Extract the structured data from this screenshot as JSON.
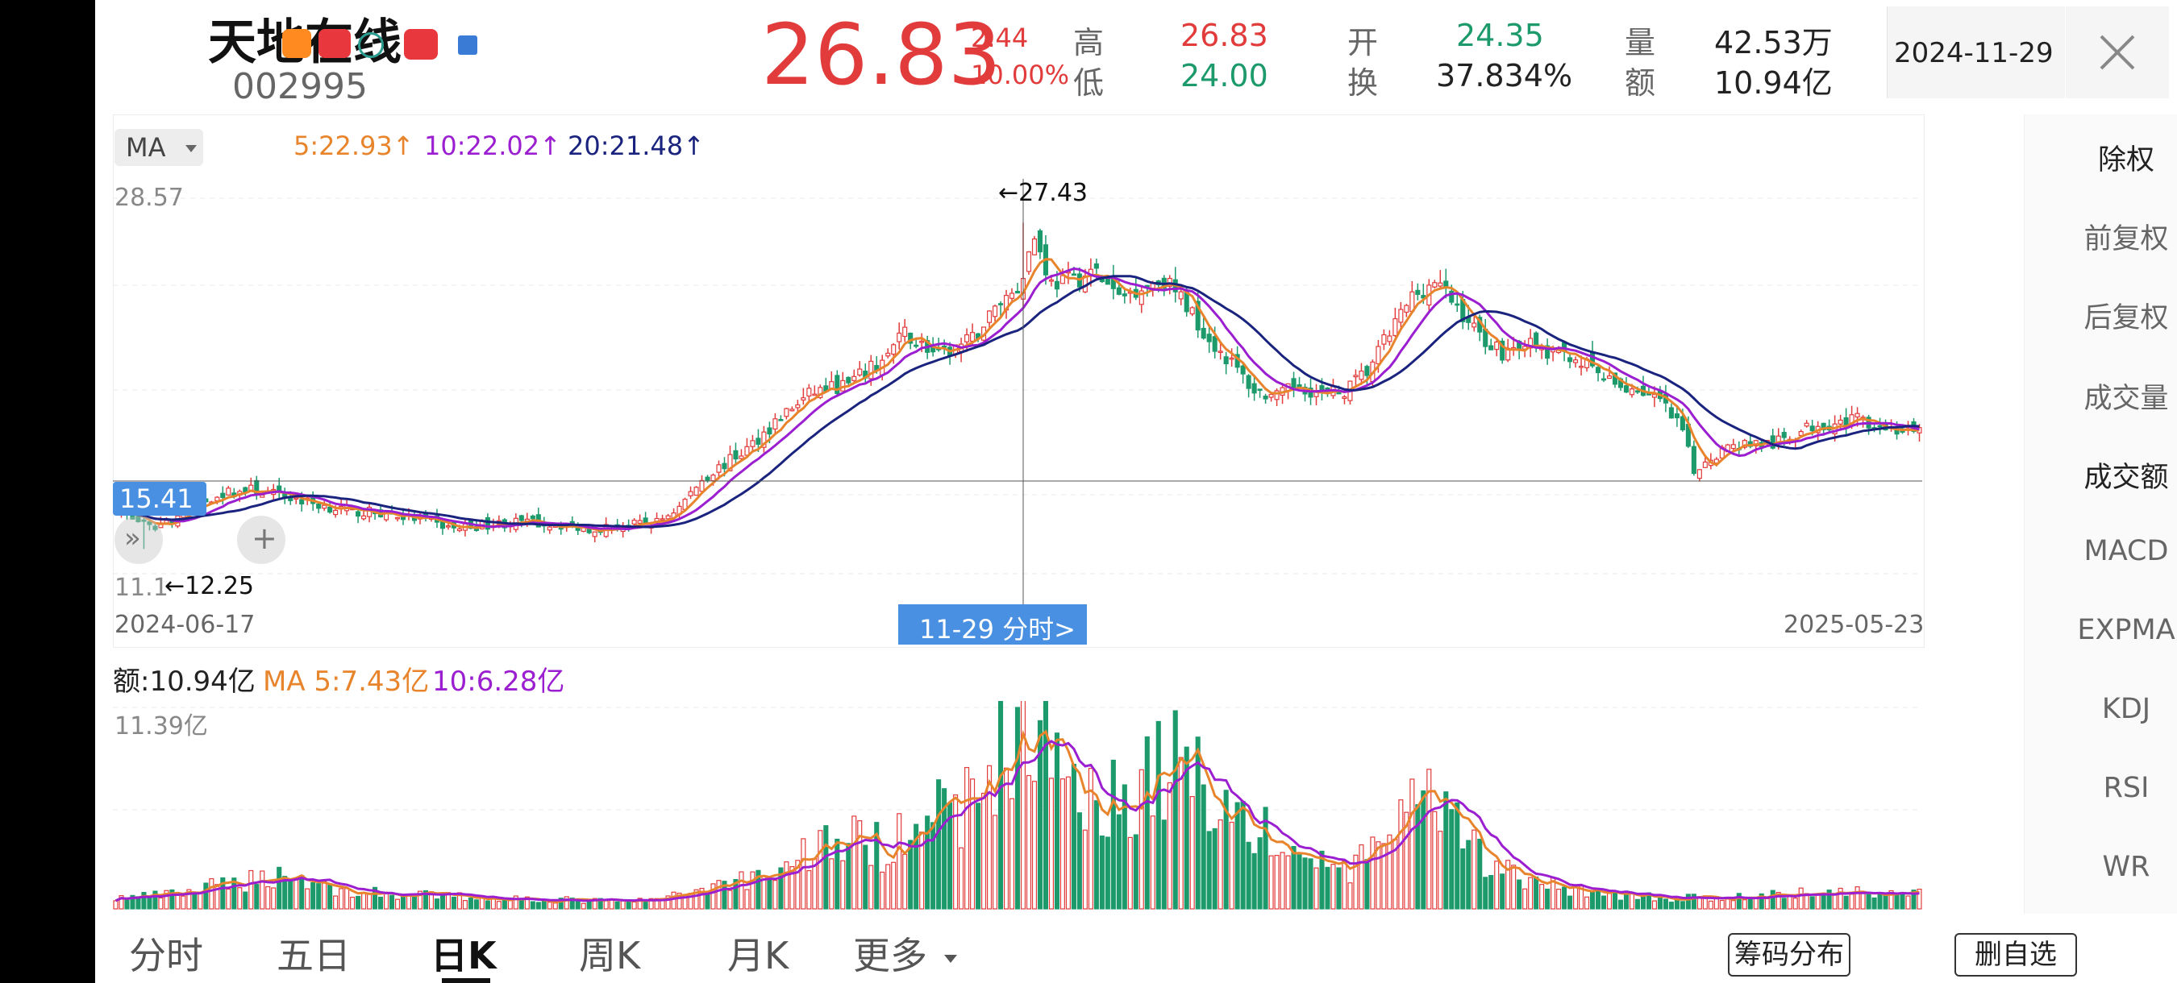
{
  "header": {
    "stock_name": "天地在线",
    "stock_code": "002995",
    "price": "26.83",
    "change": "2.44",
    "change_pct": "10.00%",
    "stats": {
      "high_label": "高",
      "high": "26.83",
      "low_label": "低",
      "low": "24.00",
      "open_label": "开",
      "open": "24.35",
      "turnover_label": "换",
      "turnover": "37.834%",
      "volume_label": "量",
      "volume": "42.53万",
      "amount_label": "额",
      "amount": "10.94亿"
    },
    "date": "2024-11-29",
    "close_icon": "close-icon"
  },
  "colors": {
    "up": "#e23b3b",
    "down": "#1d9a6c",
    "ma5": "#e8842c",
    "ma10": "#9b1fd0",
    "ma20": "#1a237e",
    "accent": "#4a90e2"
  },
  "main_chart": {
    "ma_button": "MA",
    "ma5": "5:22.93↑",
    "ma10": "10:22.02↑",
    "ma20": "20:21.48↑",
    "price_max_label": "28.57",
    "price_min_label": "11.1",
    "crosshair_value": "15.41",
    "high_marker": "←27.43",
    "low_marker": "←12.25",
    "date_start": "2024-06-17",
    "date_end": "2025-05-23",
    "tooltip": "11-29 分时>"
  },
  "volume_chart": {
    "amount": "额:10.94亿",
    "ma5": "MA 5:7.43亿",
    "ma10": "10:6.28亿",
    "max_label": "11.39亿"
  },
  "side_menu": [
    "除权",
    "前复权",
    "后复权",
    "成交量",
    "成交额",
    "MACD",
    "EXPMA",
    "KDJ",
    "RSI",
    "WR"
  ],
  "bottom_tabs": [
    "分时",
    "五日",
    "日K",
    "周K",
    "月K",
    "更多"
  ],
  "active_tab": "日K",
  "buttons": {
    "chip": "筹码分布",
    "remove_watch": "删自选"
  },
  "chart_data": {
    "type": "candlestick",
    "x_range": [
      "2024-06-17",
      "2025-05-23"
    ],
    "y_range": [
      11.1,
      28.57
    ],
    "annotations": {
      "high": 27.43,
      "low": 12.25,
      "crosshair": 15.41,
      "selected_date": "2024-11-29"
    },
    "close_anchors": [
      [
        0,
        14.2
      ],
      [
        6,
        13.2
      ],
      [
        12,
        13.9
      ],
      [
        18,
        14.8
      ],
      [
        24,
        15.0
      ],
      [
        30,
        14.7
      ],
      [
        36,
        14.3
      ],
      [
        42,
        14.0
      ],
      [
        48,
        13.9
      ],
      [
        54,
        13.6
      ],
      [
        60,
        13.2
      ],
      [
        66,
        13.4
      ],
      [
        72,
        13.5
      ],
      [
        78,
        13.4
      ],
      [
        84,
        13.2
      ],
      [
        90,
        13.3
      ],
      [
        96,
        13.5
      ],
      [
        100,
        14.2
      ],
      [
        104,
        15.5
      ],
      [
        108,
        16.2
      ],
      [
        112,
        16.9
      ],
      [
        118,
        18.4
      ],
      [
        124,
        19.6
      ],
      [
        130,
        19.9
      ],
      [
        136,
        21.0
      ],
      [
        140,
        22.3
      ],
      [
        146,
        21.2
      ],
      [
        152,
        22.0
      ],
      [
        157,
        23.8
      ],
      [
        160,
        24.4
      ],
      [
        163,
        26.8
      ],
      [
        166,
        24.6
      ],
      [
        170,
        24.8
      ],
      [
        174,
        25.1
      ],
      [
        178,
        23.9
      ],
      [
        182,
        24.5
      ],
      [
        186,
        24.8
      ],
      [
        190,
        23.6
      ],
      [
        194,
        22.0
      ],
      [
        198,
        20.9
      ],
      [
        202,
        19.6
      ],
      [
        206,
        19.3
      ],
      [
        210,
        19.9
      ],
      [
        214,
        19.4
      ],
      [
        218,
        19.6
      ],
      [
        222,
        20.5
      ],
      [
        226,
        22.3
      ],
      [
        230,
        24.0
      ],
      [
        234,
        24.7
      ],
      [
        238,
        23.5
      ],
      [
        242,
        22.2
      ],
      [
        246,
        21.4
      ],
      [
        250,
        21.9
      ],
      [
        254,
        21.3
      ],
      [
        258,
        21.3
      ],
      [
        262,
        20.6
      ],
      [
        266,
        19.8
      ],
      [
        270,
        19.7
      ],
      [
        274,
        19.1
      ],
      [
        278,
        17.7
      ],
      [
        280,
        15.8
      ],
      [
        282,
        16.4
      ],
      [
        286,
        17.0
      ],
      [
        290,
        17.2
      ],
      [
        294,
        17.1
      ],
      [
        298,
        17.6
      ],
      [
        302,
        18.1
      ],
      [
        306,
        18.1
      ],
      [
        310,
        18.3
      ],
      [
        314,
        17.9
      ],
      [
        318,
        17.7
      ],
      [
        320,
        17.6
      ]
    ],
    "volume_anchors_yi": [
      [
        0,
        0.6
      ],
      [
        10,
        0.8
      ],
      [
        20,
        1.4
      ],
      [
        30,
        2.0
      ],
      [
        40,
        1.0
      ],
      [
        50,
        0.8
      ],
      [
        60,
        0.7
      ],
      [
        70,
        0.6
      ],
      [
        80,
        0.5
      ],
      [
        90,
        0.4
      ],
      [
        98,
        0.6
      ],
      [
        104,
        1.2
      ],
      [
        110,
        1.6
      ],
      [
        118,
        2.2
      ],
      [
        124,
        3.6
      ],
      [
        130,
        4.0
      ],
      [
        136,
        3.4
      ],
      [
        142,
        6.0
      ],
      [
        148,
        5.0
      ],
      [
        154,
        7.0
      ],
      [
        160,
        10.94
      ],
      [
        166,
        9.0
      ],
      [
        172,
        7.2
      ],
      [
        178,
        6.0
      ],
      [
        184,
        7.8
      ],
      [
        190,
        8.4
      ],
      [
        196,
        6.2
      ],
      [
        202,
        4.6
      ],
      [
        208,
        3.2
      ],
      [
        214,
        2.6
      ],
      [
        220,
        2.2
      ],
      [
        228,
        5.4
      ],
      [
        234,
        5.8
      ],
      [
        240,
        3.6
      ],
      [
        246,
        2.2
      ],
      [
        252,
        1.4
      ],
      [
        258,
        1.2
      ],
      [
        264,
        0.9
      ],
      [
        270,
        0.7
      ],
      [
        278,
        0.6
      ],
      [
        286,
        0.6
      ],
      [
        294,
        0.8
      ],
      [
        302,
        0.9
      ],
      [
        310,
        1.0
      ],
      [
        320,
        0.9
      ]
    ]
  }
}
